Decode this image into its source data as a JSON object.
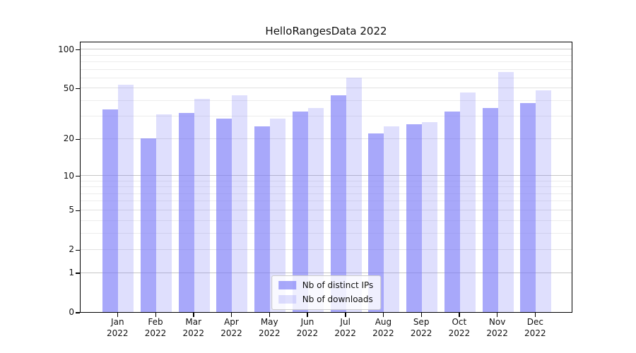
{
  "chart_data": {
    "type": "bar",
    "title": "HelloRangesData 2022",
    "categories": [
      "Jan 2022",
      "Feb 2022",
      "Mar 2022",
      "Apr 2022",
      "May 2022",
      "Jun 2022",
      "Jul 2022",
      "Aug 2022",
      "Sep 2022",
      "Oct 2022",
      "Nov 2022",
      "Dec 2022"
    ],
    "series": [
      {
        "name": "Nb of distinct IPs",
        "color": "rgba(122,122,248,0.65)",
        "values": [
          34,
          20,
          32,
          29,
          25,
          33,
          44,
          22,
          26,
          33,
          35,
          38
        ]
      },
      {
        "name": "Nb of downloads",
        "color": "rgba(122,122,248,0.24)",
        "values": [
          53,
          31,
          41,
          44,
          29,
          35,
          60,
          25,
          27,
          46,
          67,
          48
        ]
      }
    ],
    "y_axis": {
      "scale": "log1p",
      "ylim": [
        0,
        101
      ],
      "tick_labels": [
        "0",
        "1",
        "2",
        "5",
        "10",
        "20",
        "50",
        "100"
      ],
      "major_ticks": [
        0,
        1,
        2,
        5,
        10,
        20,
        50,
        100
      ],
      "minor_gridlines": [
        3,
        4,
        6,
        7,
        8,
        9,
        30,
        40,
        60,
        70,
        80,
        90
      ],
      "power_gridlines": [
        1,
        10,
        100
      ]
    },
    "grid": "horizontal",
    "legend_position": "lower-center"
  },
  "colors": {
    "bar_ips_blended": "#a7a7fa",
    "bar_downloads_blended": "#dcdcfa",
    "grid_power": "#c6c6c6",
    "grid_labeled": "#e2e2e2",
    "grid_minor": "#ececec",
    "axis": "#000000",
    "legend_border": "#cccccc",
    "text": "#111111"
  }
}
